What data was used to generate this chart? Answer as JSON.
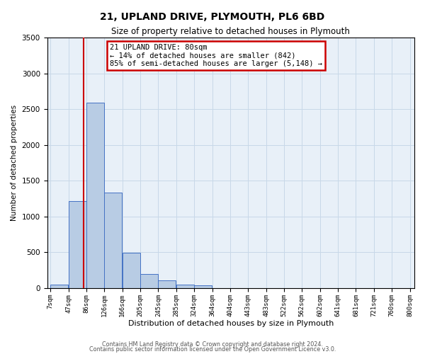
{
  "title": "21, UPLAND DRIVE, PLYMOUTH, PL6 6BD",
  "subtitle": "Size of property relative to detached houses in Plymouth",
  "xlabel": "Distribution of detached houses by size in Plymouth",
  "ylabel": "Number of detached properties",
  "bar_left_edges": [
    7,
    47,
    86,
    126,
    166,
    205,
    245,
    285,
    324,
    364,
    404,
    443,
    483,
    522,
    562,
    602,
    641,
    681,
    721,
    760
  ],
  "bar_heights": [
    50,
    1220,
    2590,
    1340,
    490,
    195,
    110,
    50,
    42,
    5,
    5,
    0,
    0,
    0,
    0,
    0,
    0,
    0,
    0,
    0
  ],
  "bar_widths": [
    39,
    39,
    39,
    39,
    39,
    39,
    39,
    39,
    39,
    39,
    39,
    39,
    39,
    39,
    39,
    39,
    39,
    39,
    39,
    39
  ],
  "bar_color": "#b8cce4",
  "bar_edge_color": "#4472c4",
  "tick_labels": [
    "7sqm",
    "47sqm",
    "86sqm",
    "126sqm",
    "166sqm",
    "205sqm",
    "245sqm",
    "285sqm",
    "324sqm",
    "364sqm",
    "404sqm",
    "443sqm",
    "483sqm",
    "522sqm",
    "562sqm",
    "602sqm",
    "641sqm",
    "681sqm",
    "721sqm",
    "760sqm",
    "800sqm"
  ],
  "tick_positions": [
    7,
    47,
    86,
    126,
    166,
    205,
    245,
    285,
    324,
    364,
    404,
    443,
    483,
    522,
    562,
    602,
    641,
    681,
    721,
    760,
    800
  ],
  "ylim": [
    0,
    3500
  ],
  "xlim": [
    0,
    810
  ],
  "property_x": 80,
  "property_line_color": "#cc0000",
  "annotation_title": "21 UPLAND DRIVE: 80sqm",
  "annotation_line1": "← 14% of detached houses are smaller (842)",
  "annotation_line2": "85% of semi-detached houses are larger (5,148) →",
  "annotation_color": "#cc0000",
  "grid_color": "#c8d8e8",
  "background_color": "#e8f0f8",
  "footer1": "Contains HM Land Registry data © Crown copyright and database right 2024.",
  "footer2": "Contains public sector information licensed under the Open Government Licence v3.0."
}
